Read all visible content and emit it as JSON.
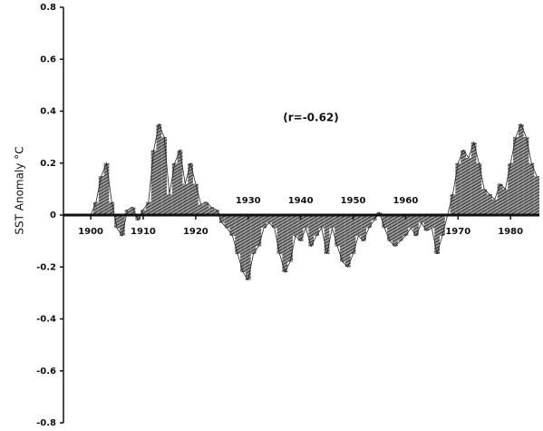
{
  "chart_data": {
    "type": "area",
    "y_label": "SST Anomaly °C",
    "annotation": "(r=-0.62)",
    "color": "#222222",
    "x": [
      1900,
      1901,
      1902,
      1903,
      1904,
      1905,
      1906,
      1907,
      1908,
      1909,
      1910,
      1911,
      1912,
      1913,
      1914,
      1915,
      1916,
      1917,
      1918,
      1919,
      1920,
      1921,
      1922,
      1923,
      1924,
      1925,
      1926,
      1927,
      1928,
      1929,
      1930,
      1931,
      1932,
      1933,
      1934,
      1935,
      1936,
      1937,
      1938,
      1939,
      1940,
      1941,
      1942,
      1943,
      1944,
      1945,
      1946,
      1947,
      1948,
      1949,
      1950,
      1951,
      1952,
      1953,
      1954,
      1955,
      1956,
      1957,
      1958,
      1959,
      1960,
      1961,
      1962,
      1963,
      1964,
      1965,
      1966,
      1967,
      1968,
      1969,
      1970,
      1971,
      1972,
      1973,
      1974,
      1975,
      1976,
      1977,
      1978,
      1979,
      1980,
      1981,
      1982,
      1983,
      1984,
      1985
    ],
    "values": [
      0.0,
      0.05,
      0.15,
      0.2,
      0.05,
      -0.05,
      -0.08,
      0.02,
      0.03,
      -0.02,
      0.02,
      0.05,
      0.25,
      0.35,
      0.3,
      0.08,
      0.2,
      0.25,
      0.12,
      0.2,
      0.12,
      0.04,
      0.05,
      0.03,
      0.02,
      -0.03,
      -0.05,
      -0.08,
      -0.15,
      -0.22,
      -0.25,
      -0.15,
      -0.12,
      -0.05,
      -0.03,
      -0.05,
      -0.15,
      -0.22,
      -0.18,
      -0.08,
      -0.1,
      -0.05,
      -0.12,
      -0.08,
      -0.05,
      -0.15,
      -0.05,
      -0.12,
      -0.18,
      -0.2,
      -0.15,
      -0.08,
      -0.1,
      -0.05,
      -0.02,
      0.01,
      -0.05,
      -0.1,
      -0.12,
      -0.1,
      -0.08,
      -0.05,
      -0.08,
      -0.03,
      -0.06,
      -0.05,
      -0.15,
      -0.08,
      0.0,
      0.08,
      0.2,
      0.25,
      0.22,
      0.28,
      0.2,
      0.1,
      0.08,
      0.06,
      0.12,
      0.1,
      0.2,
      0.3,
      0.35,
      0.3,
      0.2,
      0.15
    ],
    "xlim": [
      1894.8,
      1985.5
    ],
    "xticks": [
      1900,
      1910,
      1920,
      1930,
      1940,
      1950,
      1960,
      1970,
      1980
    ],
    "ylim": [
      -0.8,
      0.8
    ],
    "yticks": [
      -0.8,
      -0.6,
      -0.4,
      -0.2,
      0,
      0.2,
      0.4,
      0.6,
      0.8
    ]
  }
}
